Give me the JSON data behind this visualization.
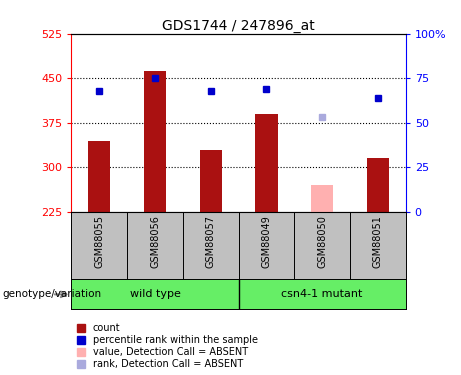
{
  "title": "GDS1744 / 247896_at",
  "categories": [
    "GSM88055",
    "GSM88056",
    "GSM88057",
    "GSM88049",
    "GSM88050",
    "GSM88051"
  ],
  "bar_values": [
    345,
    462,
    330,
    390,
    270,
    315
  ],
  "bar_colors": [
    "#aa1111",
    "#aa1111",
    "#aa1111",
    "#aa1111",
    "#ffb0b0",
    "#aa1111"
  ],
  "rank_values": [
    68,
    75,
    68,
    69,
    null,
    64
  ],
  "rank_colors": [
    "#0000cc",
    "#0000cc",
    "#0000cc",
    "#0000cc",
    null,
    "#0000cc"
  ],
  "absent_rank_value": 53,
  "absent_rank_color": "#aaaadd",
  "absent_rank_index": 4,
  "ylim_left": [
    225,
    525
  ],
  "ylim_right": [
    0,
    100
  ],
  "yticks_left": [
    225,
    300,
    375,
    450,
    525
  ],
  "ytick_labels_left": [
    "225",
    "300",
    "375",
    "450",
    "525"
  ],
  "yticks_right": [
    0,
    25,
    50,
    75,
    100
  ],
  "ytick_labels_right": [
    "0",
    "25",
    "50",
    "75",
    "100%"
  ],
  "hlines": [
    300,
    375,
    450
  ],
  "group1_label": "wild type",
  "group2_label": "csn4-1 mutant",
  "genotype_label": "genotype/variation",
  "legend_items": [
    {
      "label": "count",
      "color": "#aa1111"
    },
    {
      "label": "percentile rank within the sample",
      "color": "#0000cc"
    },
    {
      "label": "value, Detection Call = ABSENT",
      "color": "#ffb0b0"
    },
    {
      "label": "rank, Detection Call = ABSENT",
      "color": "#aaaadd"
    }
  ],
  "bar_width": 0.4,
  "panel_bg_color": "#c0c0c0",
  "group_panel_color": "#66ee66",
  "plot_bg_color": "#ffffff"
}
